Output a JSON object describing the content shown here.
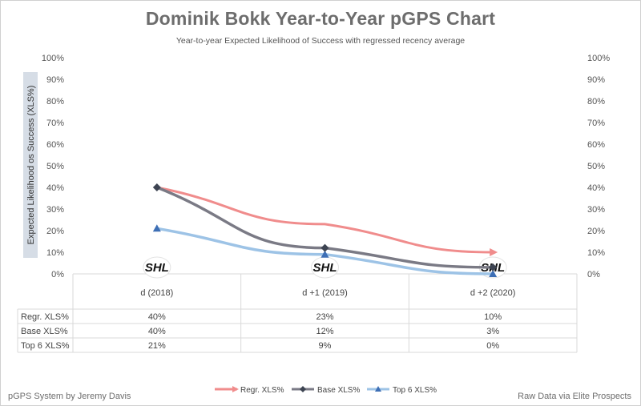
{
  "title": "Dominik Bokk Year-to-Year pGPS Chart",
  "subtitle": "Year-to-year Expected Likelihood of Success with regressed recency average",
  "footer_left": "pGPS System by Jeremy Davis",
  "footer_right": "Raw Data via Elite Prospects",
  "league_logo_text": "SHL",
  "colors": {
    "regr": "#f08c8c",
    "base": "#7a7a85",
    "base_marker": "#3d4452",
    "top6": "#9dc3e6",
    "top6_marker": "#3e6fb5",
    "grid": "#d9d9d9",
    "ylabel_bg": "#d6dde6"
  },
  "chart_data": {
    "type": "line",
    "title": "Dominik Bokk Year-to-Year pGPS Chart",
    "subtitle": "Year-to-year Expected Likelihood of Success with regressed recency average",
    "ylabel": "Expected Likelihood os Success (XLS%)",
    "xlabel": "",
    "ylim": [
      0,
      100
    ],
    "y_ticks": [
      "0%",
      "10%",
      "20%",
      "30%",
      "40%",
      "50%",
      "60%",
      "70%",
      "80%",
      "90%",
      "100%"
    ],
    "secondary_y_ticks": [
      "0%",
      "10%",
      "20%",
      "30%",
      "40%",
      "50%",
      "60%",
      "70%",
      "80%",
      "90%",
      "100%"
    ],
    "grid": false,
    "legend_position": "bottom",
    "categories": [
      "d (2018)",
      "d +1 (2019)",
      "d +2 (2020)"
    ],
    "series": [
      {
        "name": "Regr. XLS%",
        "values": [
          40,
          23,
          10
        ],
        "labels": [
          "40%",
          "23%",
          "10%"
        ],
        "marker": "arrow"
      },
      {
        "name": "Base XLS%",
        "values": [
          40,
          12,
          3
        ],
        "labels": [
          "40%",
          "12%",
          "3%"
        ],
        "marker": "diamond"
      },
      {
        "name": "Top 6 XLS%",
        "values": [
          21,
          9,
          0
        ],
        "labels": [
          "21%",
          "9%",
          "0%"
        ],
        "marker": "triangle"
      }
    ]
  }
}
